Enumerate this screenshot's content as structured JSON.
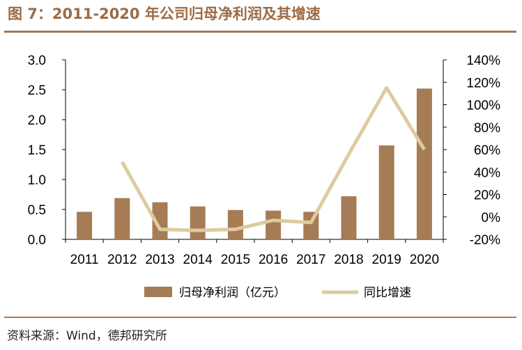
{
  "header": {
    "title": "图 7：2011-2020 年公司归母净利润及其增速"
  },
  "footer": {
    "source": "资料来源：Wind，德邦研究所"
  },
  "chart_data": {
    "type": "bar",
    "categories": [
      "2011",
      "2012",
      "2013",
      "2014",
      "2015",
      "2016",
      "2017",
      "2018",
      "2019",
      "2020"
    ],
    "series": [
      {
        "name": "归母净利润（亿元）",
        "type": "bar",
        "axis": "left",
        "color": "#a57c55",
        "values": [
          0.46,
          0.69,
          0.62,
          0.55,
          0.49,
          0.48,
          0.46,
          0.72,
          1.57,
          2.52
        ]
      },
      {
        "name": "同比增速",
        "type": "line",
        "axis": "right",
        "color": "#ddcb9f",
        "values": [
          null,
          49,
          -11,
          -12,
          -11,
          -3,
          -5,
          56,
          115,
          60
        ]
      }
    ],
    "y_left": {
      "min": 0,
      "max": 3.0,
      "ticks": [
        0.0,
        0.5,
        1.0,
        1.5,
        2.0,
        2.5,
        3.0
      ],
      "tick_labels": [
        "0.0",
        "0.5",
        "1.0",
        "1.5",
        "2.0",
        "2.5",
        "3.0"
      ]
    },
    "y_right": {
      "min": -20,
      "max": 140,
      "ticks": [
        -20,
        0,
        20,
        40,
        60,
        80,
        100,
        120,
        140
      ],
      "tick_labels": [
        "-20%",
        "0%",
        "20%",
        "40%",
        "60%",
        "80%",
        "100%",
        "120%",
        "140%"
      ]
    },
    "grid": false,
    "legend": "bottom"
  }
}
